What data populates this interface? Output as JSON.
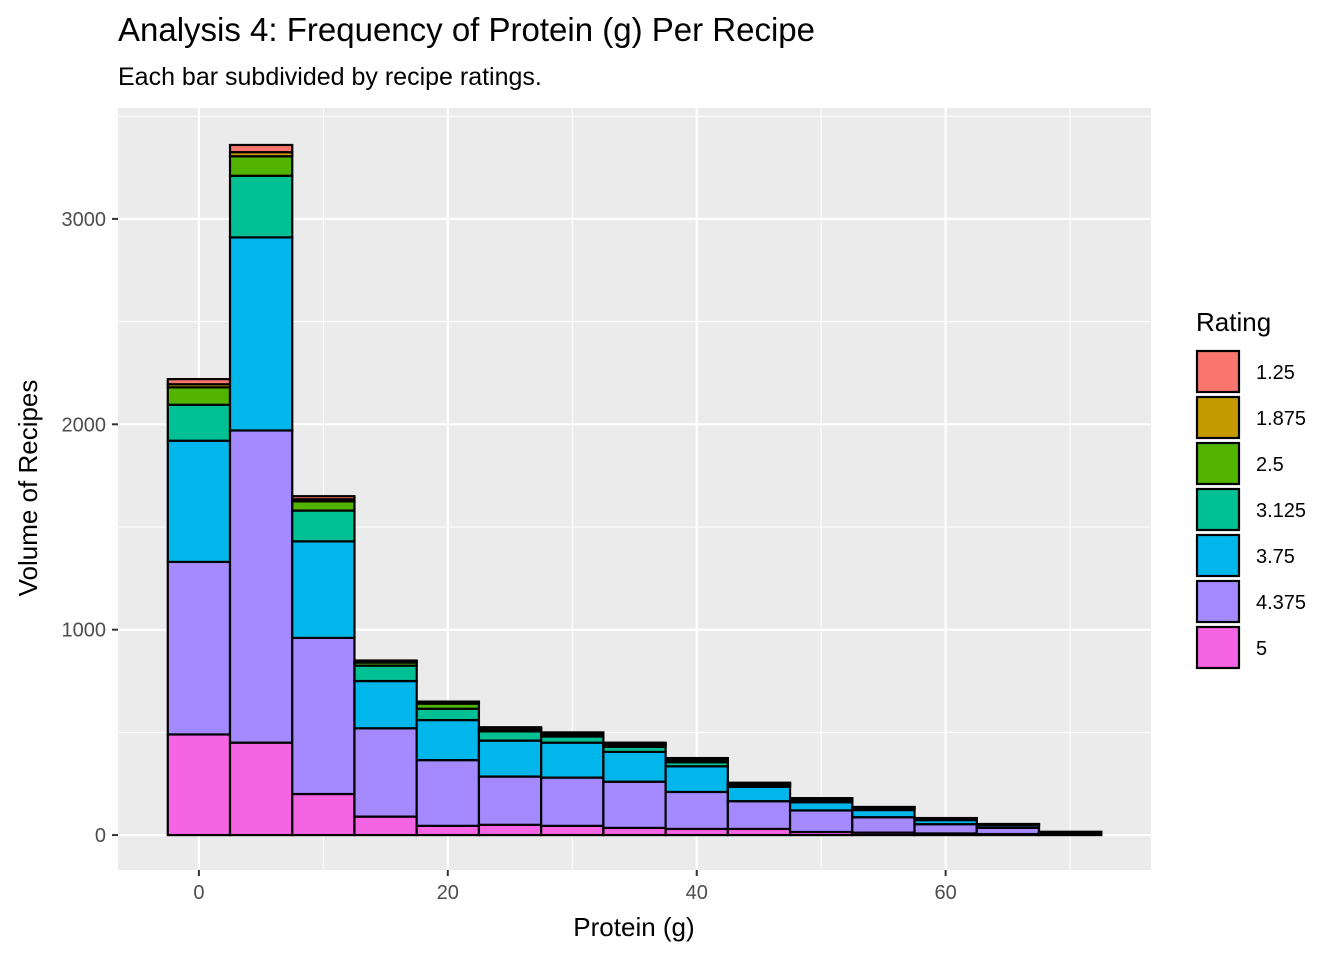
{
  "chart_data": {
    "type": "bar",
    "stacked": true,
    "title": "Analysis 4: Frequency of Protein (g) Per Recipe",
    "subtitle": "Each bar subdivided by recipe ratings.",
    "xlabel": "Protein (g)",
    "ylabel": "Volume of Recipes",
    "xlim": [
      -6.5,
      76.5
    ],
    "ylim": [
      -170,
      3540
    ],
    "xticks": [
      0,
      20,
      40,
      60
    ],
    "yticks": [
      0,
      1000,
      2000,
      3000
    ],
    "grid": true,
    "legend_position": "right",
    "legend_title": "Rating",
    "bin_width": 5,
    "bins": [
      0,
      5,
      10,
      15,
      20,
      25,
      30,
      35,
      40,
      45,
      50,
      55,
      60,
      65,
      70
    ],
    "series": [
      {
        "name": "5",
        "color": "#F564E3",
        "values": [
          490,
          450,
          200,
          90,
          45,
          50,
          45,
          35,
          30,
          30,
          15,
          12,
          8,
          5,
          3
        ]
      },
      {
        "name": "4.375",
        "color": "#A58AFF",
        "values": [
          840,
          1520,
          760,
          430,
          320,
          235,
          235,
          225,
          180,
          135,
          105,
          75,
          45,
          30,
          6
        ]
      },
      {
        "name": "3.75",
        "color": "#00B6EB",
        "values": [
          590,
          940,
          470,
          230,
          195,
          175,
          170,
          145,
          125,
          70,
          40,
          35,
          20,
          12,
          3
        ]
      },
      {
        "name": "3.125",
        "color": "#00C094",
        "values": [
          175,
          300,
          150,
          75,
          55,
          45,
          30,
          25,
          20,
          10,
          10,
          8,
          5,
          3,
          1
        ]
      },
      {
        "name": "2.5",
        "color": "#53B400",
        "values": [
          85,
          95,
          45,
          15,
          25,
          10,
          10,
          10,
          10,
          5,
          5,
          3,
          2,
          2,
          1
        ]
      },
      {
        "name": "1.875",
        "color": "#C49A00",
        "values": [
          15,
          20,
          10,
          5,
          5,
          5,
          5,
          5,
          5,
          3,
          3,
          2,
          2,
          1,
          1
        ]
      },
      {
        "name": "1.25",
        "color": "#F8766D",
        "values": [
          25,
          35,
          15,
          5,
          5,
          5,
          5,
          5,
          5,
          2,
          2,
          2,
          1,
          1,
          1
        ]
      }
    ],
    "legend_order": [
      "1.25",
      "1.875",
      "2.5",
      "3.125",
      "3.75",
      "4.375",
      "5"
    ]
  }
}
